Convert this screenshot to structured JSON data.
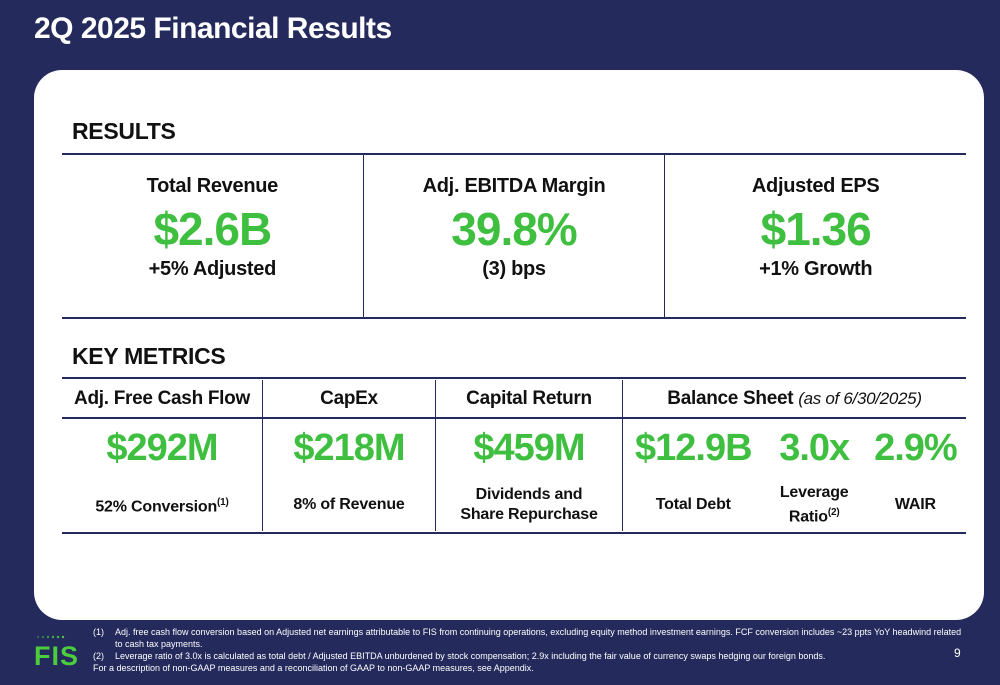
{
  "title": "2Q 2025 Financial Results",
  "results": {
    "heading": "RESULTS",
    "items": [
      {
        "label": "Total Revenue",
        "value": "$2.6B",
        "sub": "+5% Adjusted"
      },
      {
        "label": "Adj. EBITDA Margin",
        "value": "39.8%",
        "sub": "(3) bps"
      },
      {
        "label": "Adjusted EPS",
        "value": "$1.36",
        "sub": "+1% Growth"
      }
    ]
  },
  "key_metrics": {
    "heading": "KEY METRICS",
    "free_cash_flow": {
      "label": "Adj. Free Cash Flow",
      "value": "$292M",
      "sub": "52% Conversion",
      "sup": "(1)"
    },
    "capex": {
      "label": "CapEx",
      "value": "$218M",
      "sub": "8% of Revenue"
    },
    "capital_return": {
      "label": "Capital Return",
      "value": "$459M",
      "sub": "Dividends and Share Repurchase"
    },
    "balance_sheet": {
      "label": "Balance Sheet",
      "note": "(as of 6/30/2025)",
      "total_debt": {
        "value": "$12.9B",
        "sub": "Total Debt"
      },
      "leverage": {
        "value": "3.0x",
        "sub": "Leverage Ratio",
        "sup": "(2)"
      },
      "wair": {
        "value": "2.9%",
        "sub": "WAIR"
      }
    }
  },
  "footnotes": [
    {
      "num": "(1)",
      "text": "Adj. free cash flow conversion based on Adjusted net earnings attributable to FIS from continuing operations, excluding equity method investment earnings. FCF conversion includes ~23 ppts YoY headwind related to cash tax payments."
    },
    {
      "num": "(2)",
      "text": "Leverage ratio of 3.0x is calculated as total debt / Adjusted EBITDA unburdened by stock compensation; 2.9x including the fair value of currency swaps hedging our foreign bonds."
    }
  ],
  "footnote_extra": "For a description of non-GAAP measures and a reconciliation of GAAP to non-GAAP measures, see Appendix.",
  "page_number": "9",
  "logo": {
    "text": "FIS",
    "color": "#4bcd3e"
  },
  "colors": {
    "navy": "#242a5c",
    "green": "#3fbf3f"
  }
}
